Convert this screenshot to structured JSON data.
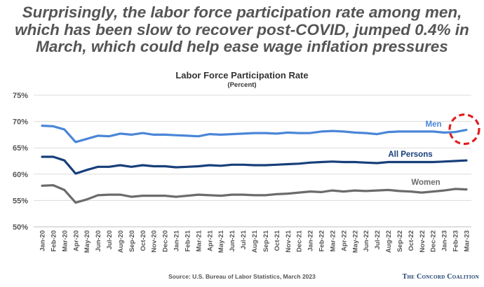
{
  "headline": "Surprisingly, the labor force participation rate among men, which has been slow to recover post-COVID, jumped 0.4% in March, which could help ease wage inflation pressures",
  "source": "Source: U.S. Bureau of Labor Statistics, March 2023",
  "brand": "The Concord Coalition",
  "chart_data": {
    "type": "line",
    "title": "Labor Force Participation Rate",
    "subtitle": "(Percent)",
    "ylim": [
      50,
      75
    ],
    "yticks": [
      50,
      55,
      60,
      65,
      70,
      75
    ],
    "ytick_labels": [
      "50%",
      "55%",
      "60%",
      "65%",
      "70%",
      "75%"
    ],
    "grid": "horizontal",
    "x": [
      "Jan-20",
      "Feb-20",
      "Mar-20",
      "Apr-20",
      "May-20",
      "Jun-20",
      "Jul-20",
      "Aug-20",
      "Sep-20",
      "Oct-20",
      "Nov-20",
      "Dec-20",
      "Jan-21",
      "Feb-21",
      "Mar-21",
      "Apr-21",
      "May-21",
      "Jun-21",
      "Jul-21",
      "Aug-21",
      "Sep-21",
      "Oct-21",
      "Nov-21",
      "Dec-21",
      "Jan-22",
      "Feb-22",
      "Mar-22",
      "Apr-22",
      "May-22",
      "Jun-22",
      "Jul-22",
      "Aug-22",
      "Sep-22",
      "Oct-22",
      "Nov-22",
      "Dec-22",
      "Jan-23",
      "Feb-23",
      "Mar-23"
    ],
    "series": [
      {
        "name": "Men",
        "color": "#4a86d8",
        "values": [
          69.2,
          69.1,
          68.5,
          66.1,
          66.7,
          67.3,
          67.2,
          67.7,
          67.5,
          67.8,
          67.5,
          67.5,
          67.4,
          67.3,
          67.2,
          67.6,
          67.5,
          67.6,
          67.7,
          67.8,
          67.8,
          67.7,
          67.9,
          67.8,
          67.8,
          68.1,
          68.2,
          68.1,
          67.9,
          67.8,
          67.6,
          68.0,
          68.1,
          68.1,
          68.1,
          68.1,
          67.9,
          68.0,
          68.4
        ]
      },
      {
        "name": "All Persons",
        "color": "#173f7a",
        "values": [
          63.3,
          63.3,
          62.6,
          60.1,
          60.8,
          61.4,
          61.4,
          61.7,
          61.4,
          61.7,
          61.5,
          61.5,
          61.3,
          61.4,
          61.5,
          61.7,
          61.6,
          61.8,
          61.8,
          61.7,
          61.7,
          61.8,
          61.9,
          62.0,
          62.2,
          62.3,
          62.4,
          62.3,
          62.3,
          62.2,
          62.1,
          62.3,
          62.3,
          62.3,
          62.3,
          62.3,
          62.4,
          62.5,
          62.6
        ]
      },
      {
        "name": "Women",
        "color": "#6b6b6b",
        "values": [
          57.8,
          57.9,
          57.0,
          54.6,
          55.2,
          56.0,
          56.1,
          56.1,
          55.7,
          55.9,
          55.9,
          55.9,
          55.7,
          55.9,
          56.1,
          56.0,
          55.9,
          56.1,
          56.1,
          56.0,
          56.0,
          56.2,
          56.3,
          56.5,
          56.7,
          56.6,
          56.9,
          56.7,
          56.9,
          56.8,
          56.9,
          57.0,
          56.8,
          56.7,
          56.5,
          56.7,
          56.9,
          57.2,
          57.1
        ]
      }
    ],
    "annotation": {
      "type": "dashed-circle",
      "color": "#e02020",
      "target_series": "Men",
      "target_x": "Mar-23"
    }
  }
}
